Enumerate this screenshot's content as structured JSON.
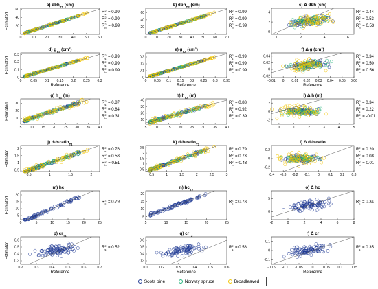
{
  "colors": {
    "scots_pine": "#1f3a93",
    "norway_spruce": "#22b37a",
    "broadleaved": "#f2c400"
  },
  "legend": [
    {
      "key": "scots_pine",
      "label": "Scots pine"
    },
    {
      "key": "norway_spruce",
      "label": "Norway spruce"
    },
    {
      "key": "broadleaved",
      "label": "Broadleaved"
    }
  ],
  "chart_data": [
    {
      "id": "a",
      "type": "scatter",
      "title_main": "a) dbh",
      "title_sub": "T1",
      "title_unit": " (cm)",
      "xlabel": "",
      "ylabel": "Estimated",
      "xticks": [
        0,
        10,
        20,
        30,
        40,
        50,
        60
      ],
      "yticks": [
        20,
        40,
        60
      ],
      "xlim": [
        0,
        60
      ],
      "ylim": [
        0,
        62
      ],
      "groups": [
        "scots_pine",
        "norway_spruce",
        "broadleaved"
      ],
      "r2": [
        {
          "sym": "s",
          "value": "0.99"
        },
        {
          "sym": "s",
          "value": "0.99"
        },
        {
          "sym": "b",
          "value": "0.99"
        }
      ],
      "pattern": "tight"
    },
    {
      "id": "b",
      "type": "scatter",
      "title_main": "b) dbh",
      "title_sub": "T2",
      "title_unit": " (cm)",
      "xlabel": "",
      "ylabel": "",
      "xticks": [
        0,
        10,
        20,
        30,
        40,
        50,
        60,
        70
      ],
      "yticks": [
        20,
        40,
        60
      ],
      "xlim": [
        0,
        70
      ],
      "ylim": [
        0,
        72
      ],
      "groups": [
        "scots_pine",
        "norway_spruce",
        "broadleaved"
      ],
      "r2": [
        {
          "sym": "s",
          "value": "0.99"
        },
        {
          "sym": "s",
          "value": "0.99"
        },
        {
          "sym": "b",
          "value": "0.99"
        }
      ],
      "pattern": "tight"
    },
    {
      "id": "c",
      "type": "scatter",
      "title_main": "c) Δ dbh (cm)",
      "title_sub": "",
      "title_unit": "",
      "xlabel": "",
      "ylabel": "",
      "xticks": [
        0,
        2,
        4,
        6
      ],
      "yticks": [
        0,
        2,
        4
      ],
      "xlim": [
        -0.5,
        6.5
      ],
      "ylim": [
        -0.5,
        4.8
      ],
      "groups": [
        "scots_pine",
        "norway_spruce",
        "broadleaved"
      ],
      "r2": [
        {
          "sym": "s",
          "value": "0.44"
        },
        {
          "sym": "s",
          "value": "0.53"
        },
        {
          "sym": "b",
          "value": "0.53"
        }
      ],
      "pattern": "cloud"
    },
    {
      "id": "d",
      "type": "scatter",
      "title_main": "d) g",
      "title_sub": "T1",
      "title_unit": " (cm²)",
      "xlabel": "Reference",
      "ylabel": "Estimated",
      "xticks": [
        0,
        0.05,
        0.1,
        0.15,
        0.2,
        0.25,
        0.3
      ],
      "yticks": [
        0,
        0.1,
        0.2,
        0.3
      ],
      "xlim": [
        0,
        0.3
      ],
      "ylim": [
        0,
        0.32
      ],
      "groups": [
        "scots_pine",
        "norway_spruce",
        "broadleaved"
      ],
      "r2": [
        {
          "sym": "s",
          "value": "0.99"
        },
        {
          "sym": "s",
          "value": "0.99"
        },
        {
          "sym": "b",
          "value": "0.99"
        }
      ],
      "pattern": "tight"
    },
    {
      "id": "e",
      "type": "scatter",
      "title_main": "e) g",
      "title_sub": "T2",
      "title_unit": " (cm²)",
      "xlabel": "Reference",
      "ylabel": "",
      "xticks": [
        0,
        0.05,
        0.1,
        0.15,
        0.2,
        0.25,
        0.3,
        0.35
      ],
      "yticks": [
        0,
        0.1,
        0.2,
        0.3
      ],
      "xlim": [
        0,
        0.35
      ],
      "ylim": [
        0,
        0.36
      ],
      "groups": [
        "scots_pine",
        "norway_spruce",
        "broadleaved"
      ],
      "r2": [
        {
          "sym": "s",
          "value": "0.99"
        },
        {
          "sym": "s",
          "value": "0.99"
        },
        {
          "sym": "b",
          "value": "0.99"
        }
      ],
      "pattern": "tight"
    },
    {
      "id": "f",
      "type": "scatter",
      "title_main": "f) Δ g (cm²)",
      "title_sub": "",
      "title_unit": "",
      "xlabel": "Reference",
      "ylabel": "",
      "xticks": [
        -0.01,
        0,
        0.01,
        0.02,
        0.03,
        0.04,
        0.05,
        0.06
      ],
      "yticks": [
        -0.02,
        0,
        0.02,
        0.04
      ],
      "xlim": [
        -0.01,
        0.06
      ],
      "ylim": [
        -0.025,
        0.05
      ],
      "groups": [
        "scots_pine",
        "norway_spruce",
        "broadleaved"
      ],
      "r2": [
        {
          "sym": "s",
          "value": "0.34"
        },
        {
          "sym": "s",
          "value": "0.50"
        },
        {
          "sym": "b",
          "value": "0.56"
        }
      ],
      "pattern": "cloud"
    },
    {
      "id": "g",
      "type": "scatter",
      "title_main": "g) h",
      "title_sub": "T1",
      "title_unit": " (m)",
      "xlabel": "",
      "ylabel": "Estimated",
      "xticks": [
        5,
        10,
        15,
        20,
        25,
        30,
        35,
        40
      ],
      "yticks": [
        10,
        20,
        30
      ],
      "xlim": [
        5,
        40
      ],
      "ylim": [
        2,
        36
      ],
      "groups": [
        "scots_pine",
        "norway_spruce",
        "broadleaved"
      ],
      "r2": [
        {
          "sym": "s",
          "value": "0.87"
        },
        {
          "sym": "s",
          "value": "0.84"
        },
        {
          "sym": "b",
          "value": "0.31"
        }
      ],
      "pattern": "medium"
    },
    {
      "id": "h",
      "type": "scatter",
      "title_main": "h) h",
      "title_sub": "T2",
      "title_unit": " (m)",
      "xlabel": "",
      "ylabel": "",
      "xticks": [
        5,
        10,
        15,
        20,
        25,
        30,
        35,
        40
      ],
      "yticks": [
        10,
        20,
        30,
        40
      ],
      "xlim": [
        5,
        40
      ],
      "ylim": [
        3,
        42
      ],
      "groups": [
        "scots_pine",
        "norway_spruce",
        "broadleaved"
      ],
      "r2": [
        {
          "sym": "s",
          "value": "0.88"
        },
        {
          "sym": "s",
          "value": "0.92"
        },
        {
          "sym": "b",
          "value": "0.39"
        }
      ],
      "pattern": "medium"
    },
    {
      "id": "i",
      "type": "scatter",
      "title_main": "i) Δ h (m)",
      "title_sub": "",
      "title_unit": "",
      "xlabel": "",
      "ylabel": "",
      "xticks": [
        0,
        1,
        2,
        3,
        4,
        5
      ],
      "yticks": [
        -2,
        0,
        2
      ],
      "xlim": [
        -0.5,
        5
      ],
      "ylim": [
        -3,
        3
      ],
      "groups": [
        "scots_pine",
        "norway_spruce",
        "broadleaved"
      ],
      "r2": [
        {
          "sym": "s",
          "value": "0.34"
        },
        {
          "sym": "s",
          "value": "0.22"
        },
        {
          "sym": "b",
          "value": "-0.01"
        }
      ],
      "pattern": "flat"
    },
    {
      "id": "j",
      "type": "scatter",
      "title_main": "j) d-h-ratio",
      "title_sub": "T1",
      "title_unit": "",
      "xlabel": "",
      "ylabel": "Estimated",
      "xticks": [
        0.5,
        1,
        1.5,
        2
      ],
      "yticks": [
        0.5,
        1,
        1.5,
        2
      ],
      "xlim": [
        0.3,
        2.2
      ],
      "ylim": [
        0.4,
        2.2
      ],
      "groups": [
        "scots_pine",
        "norway_spruce",
        "broadleaved"
      ],
      "r2": [
        {
          "sym": "s",
          "value": "0.76"
        },
        {
          "sym": "s",
          "value": "0.58"
        },
        {
          "sym": "b",
          "value": "0.51"
        }
      ],
      "pattern": "medium"
    },
    {
      "id": "k",
      "type": "scatter",
      "title_main": "k) d-h-ratio",
      "title_sub": "T2",
      "title_unit": "",
      "xlabel": "",
      "ylabel": "",
      "xticks": [
        0.5,
        1,
        1.5,
        2,
        2.5,
        3
      ],
      "yticks": [
        0.5,
        1,
        1.5,
        2,
        2.5
      ],
      "xlim": [
        0.3,
        3
      ],
      "ylim": [
        0.3,
        2.7
      ],
      "groups": [
        "scots_pine",
        "norway_spruce",
        "broadleaved"
      ],
      "r2": [
        {
          "sym": "s",
          "value": "0.79"
        },
        {
          "sym": "s",
          "value": "0.73"
        },
        {
          "sym": "b",
          "value": "0.43"
        }
      ],
      "pattern": "medium"
    },
    {
      "id": "l",
      "type": "scatter",
      "title_main": "l) Δ d-h-ratio",
      "title_sub": "",
      "title_unit": "",
      "xlabel": "",
      "ylabel": "",
      "xticks": [
        -0.4,
        -0.3,
        -0.2,
        -0.1,
        0,
        0.1,
        0.2,
        0.3
      ],
      "yticks": [
        -0.2,
        0,
        0.2
      ],
      "xlim": [
        -0.4,
        0.3
      ],
      "ylim": [
        -0.3,
        0.3
      ],
      "groups": [
        "scots_pine",
        "norway_spruce",
        "broadleaved"
      ],
      "r2": [
        {
          "sym": "s",
          "value": "0.20"
        },
        {
          "sym": "s",
          "value": "0.08"
        },
        {
          "sym": "b",
          "value": "0.01"
        }
      ],
      "pattern": "flat"
    },
    {
      "id": "m",
      "type": "scatter",
      "title_main": "m) hc",
      "title_sub": "T1",
      "title_unit": "",
      "xlabel": "",
      "ylabel": "Estimated",
      "xticks": [
        0,
        5,
        10,
        15,
        20,
        25
      ],
      "yticks": [
        5,
        10,
        15,
        20
      ],
      "xlim": [
        0,
        25
      ],
      "ylim": [
        2,
        23
      ],
      "groups": [
        "scots_pine"
      ],
      "r2": [
        {
          "sym": "s",
          "value": "0.79"
        }
      ],
      "pattern": "medium"
    },
    {
      "id": "n",
      "type": "scatter",
      "title_main": "n) hc",
      "title_sub": "T2",
      "title_unit": "",
      "xlabel": "",
      "ylabel": "",
      "xticks": [
        5,
        10,
        15,
        20,
        25
      ],
      "yticks": [
        5,
        10,
        15,
        20
      ],
      "xlim": [
        5,
        25
      ],
      "ylim": [
        3,
        22
      ],
      "groups": [
        "scots_pine"
      ],
      "r2": [
        {
          "sym": "s",
          "value": "0.78"
        }
      ],
      "pattern": "medium"
    },
    {
      "id": "o",
      "type": "scatter",
      "title_main": "o) Δ hc",
      "title_sub": "",
      "title_unit": "",
      "xlabel": "",
      "ylabel": "",
      "xticks": [
        -2,
        0,
        2,
        4,
        6,
        8
      ],
      "yticks": [
        0,
        5
      ],
      "xlim": [
        -2,
        8
      ],
      "ylim": [
        -3,
        8
      ],
      "groups": [
        "scots_pine"
      ],
      "r2": [
        {
          "sym": "s",
          "value": "0.34"
        }
      ],
      "pattern": "cloud"
    },
    {
      "id": "p",
      "type": "scatter",
      "title_main": "p) cr",
      "title_sub": "T1",
      "title_unit": "",
      "xlabel": "Reference",
      "ylabel": "Estimated",
      "xticks": [
        0.2,
        0.3,
        0.4,
        0.5,
        0.6,
        0.7
      ],
      "yticks": [
        0.3,
        0.4,
        0.5,
        0.6
      ],
      "xlim": [
        0.2,
        0.7
      ],
      "ylim": [
        0.25,
        0.65
      ],
      "groups": [
        "scots_pine"
      ],
      "r2": [
        {
          "sym": "s",
          "value": "0.52"
        }
      ],
      "pattern": "cloud"
    },
    {
      "id": "q",
      "type": "scatter",
      "title_main": "q) cr",
      "title_sub": "T2",
      "title_unit": "",
      "xlabel": "Reference",
      "ylabel": "",
      "xticks": [
        0.1,
        0.2,
        0.3,
        0.4,
        0.5,
        0.6
      ],
      "yticks": [
        0.3,
        0.4,
        0.5,
        0.6
      ],
      "xlim": [
        0.1,
        0.6
      ],
      "ylim": [
        0.25,
        0.65
      ],
      "groups": [
        "scots_pine"
      ],
      "r2": [
        {
          "sym": "s",
          "value": "0.58"
        }
      ],
      "pattern": "cloud"
    },
    {
      "id": "r",
      "type": "scatter",
      "title_main": "r) Δ cr",
      "title_sub": "",
      "title_unit": "",
      "xlabel": "Reference",
      "ylabel": "",
      "xticks": [
        -0.15,
        -0.1,
        -0.05,
        0,
        0.05,
        0.1,
        0.15
      ],
      "yticks": [
        -0.1,
        0,
        0.1
      ],
      "xlim": [
        -0.15,
        0.15
      ],
      "ylim": [
        -0.15,
        0.15
      ],
      "groups": [
        "scots_pine"
      ],
      "r2": [
        {
          "sym": "s",
          "value": "0.35"
        }
      ],
      "pattern": "cloud"
    }
  ]
}
